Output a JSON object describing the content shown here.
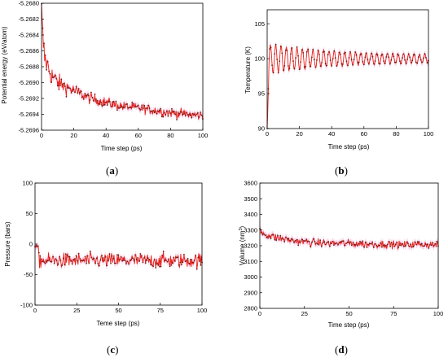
{
  "chart_data": [
    {
      "type": "line",
      "panel": "(a)",
      "panel_letter": "a",
      "xlabel": "Time step (ps)",
      "ylabel": "Potential energy (eV/atom)",
      "xlim": [
        0,
        100
      ],
      "ylim": [
        -5.2696,
        -5.268
      ],
      "xticks": [
        0,
        20,
        40,
        60,
        80,
        100
      ],
      "xtick_labels": [
        "0",
        "20",
        "40",
        "60",
        "80",
        "100"
      ],
      "yticks": [
        -5.2696,
        -5.2694,
        -5.2692,
        -5.269,
        -5.2688,
        -5.2686,
        -5.2684,
        -5.2682,
        -5.268
      ],
      "ytick_labels": [
        "-5.2696",
        "-5.2694",
        "-5.2692",
        "-5.2690",
        "-5.2688",
        "-5.2686",
        "-5.2684",
        "-5.2682",
        "-5.2680"
      ],
      "series": [
        {
          "x": [
            0,
            1,
            2,
            4,
            6,
            8,
            10,
            15,
            20,
            25,
            30,
            40,
            50,
            60,
            70,
            80,
            90,
            100
          ],
          "y": [
            -5.2681,
            -5.2685,
            -5.2687,
            -5.2688,
            -5.2689,
            -5.26895,
            -5.269,
            -5.26905,
            -5.2691,
            -5.26915,
            -5.2692,
            -5.26925,
            -5.2693,
            -5.26932,
            -5.26935,
            -5.26938,
            -5.2694,
            -5.26942
          ]
        }
      ],
      "line_color": "#e8201a",
      "marker_color": "#7a1a10",
      "band_color": "#f6c6e4"
    },
    {
      "type": "line",
      "panel": "(b)",
      "panel_letter": "b",
      "xlabel": "Time step (ps)",
      "ylabel": "Temperature (K)",
      "xlim": [
        0,
        100
      ],
      "ylim": [
        90,
        107
      ],
      "xticks": [
        0,
        20,
        40,
        60,
        80,
        100
      ],
      "xtick_labels": [
        "0",
        "20",
        "40",
        "60",
        "80",
        "100"
      ],
      "yticks": [
        90,
        95,
        100,
        105
      ],
      "ytick_labels": [
        "90",
        "95",
        "100",
        "105"
      ],
      "series": [
        {
          "x": [
            0,
            0.6,
            1.2,
            2,
            3,
            4,
            5,
            6,
            8,
            10,
            15,
            20,
            30,
            40,
            50,
            60,
            70,
            80,
            90,
            100
          ],
          "y": [
            90,
            94,
            100,
            102,
            101,
            98,
            101,
            99,
            101,
            99,
            100.8,
            99.3,
            100.6,
            99.4,
            100.5,
            99.6,
            100.4,
            99.7,
            100.3,
            100.0
          ]
        }
      ],
      "oscillation": {
        "mean": 100,
        "initial_amplitude": 2.2,
        "final_amplitude": 0.5,
        "period_ps": 3.3
      },
      "line_color": "#e8201a",
      "marker_color": "#7a1a10",
      "band_color": "#f6c6e4"
    },
    {
      "type": "line",
      "panel": "(c)",
      "panel_letter": "c",
      "xlabel": "Teme step (ps)",
      "ylabel": "Pressure (bars)",
      "xlim": [
        0,
        100
      ],
      "ylim": [
        -100,
        100
      ],
      "xticks": [
        0,
        25,
        50,
        75,
        100
      ],
      "xtick_labels": [
        "0",
        "25",
        "50",
        "75",
        "100"
      ],
      "yticks": [
        -100,
        -50,
        0,
        50,
        100
      ],
      "ytick_labels": [
        "-100",
        "-50",
        "0",
        "50",
        "100"
      ],
      "series": [
        {
          "x": [
            0,
            5,
            10,
            20,
            30,
            40,
            50,
            60,
            70,
            80,
            90,
            100
          ],
          "y": [
            -5,
            -20,
            -25,
            -28,
            -30,
            -26,
            -32,
            -30,
            -28,
            -30,
            -27,
            -28
          ]
        }
      ],
      "noise": {
        "mean": -27,
        "spread": 12,
        "range_min": -50,
        "range_max": 5
      },
      "line_color": "#e8201a",
      "marker_color": "#7a1a10",
      "band_color": "#f6c6e4"
    },
    {
      "type": "line",
      "panel": "(d)",
      "panel_letter": "d",
      "xlabel": "Time step (ps)",
      "ylabel": "Volume (nm",
      "ylabel_sup": "3",
      "ylabel_end": ")",
      "xlim": [
        0,
        100
      ],
      "ylim": [
        2800,
        3600
      ],
      "xticks": [
        0,
        25,
        50,
        75,
        100
      ],
      "xtick_labels": [
        "0",
        "25",
        "50",
        "75",
        "100"
      ],
      "yticks": [
        2800,
        2900,
        3000,
        3100,
        3200,
        3300,
        3400,
        3500,
        3600
      ],
      "ytick_labels": [
        "2800",
        "2900",
        "3000",
        "3100",
        "3200",
        "3300",
        "3400",
        "3500",
        "3600"
      ],
      "series": [
        {
          "x": [
            0,
            2,
            5,
            10,
            20,
            30,
            40,
            50,
            60,
            70,
            80,
            90,
            100
          ],
          "y": [
            3300,
            3280,
            3265,
            3250,
            3230,
            3220,
            3215,
            3215,
            3210,
            3210,
            3205,
            3210,
            3205
          ]
        }
      ],
      "noise": {
        "mean": 3215,
        "spread": 30,
        "range_min": 3130,
        "range_max": 3330
      },
      "line_color": "#e8201a",
      "marker_color": "#7a1a10",
      "band_color": "#f6c6e4"
    }
  ]
}
